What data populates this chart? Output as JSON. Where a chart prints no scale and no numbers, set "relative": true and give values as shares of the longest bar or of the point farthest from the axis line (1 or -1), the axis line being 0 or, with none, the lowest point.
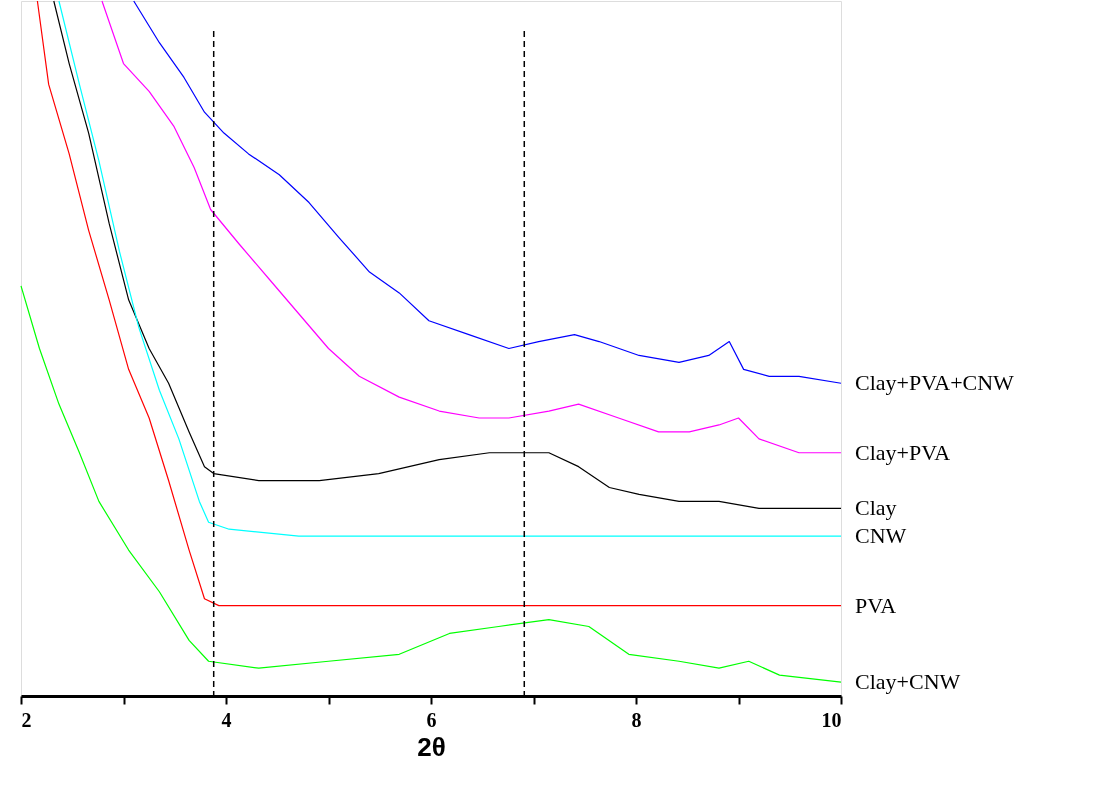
{
  "chart_data": {
    "type": "line",
    "relative": true,
    "xlabel": "2θ",
    "legend": false,
    "grid": false,
    "marker": "none",
    "line_style": "solid",
    "xlim": [
      2,
      10
    ],
    "xticks": [
      2,
      {
        "value": 3,
        "label": null
      },
      4,
      {
        "value": 5,
        "label": null
      },
      6,
      {
        "value": 7,
        "label": null
      },
      8,
      {
        "value": 9,
        "label": null
      },
      10
    ],
    "ref_lines": [
      {
        "axis": "x",
        "value": 3.88,
        "line_style": "dashed",
        "color": "#000000"
      },
      {
        "axis": "x",
        "value": 6.91,
        "line_style": "dashed",
        "color": "#000000"
      }
    ],
    "series": [
      {
        "name": "Clay+PVA+CNW",
        "color": "#0000ff",
        "x": [
          3.1,
          3.35,
          3.59,
          3.79,
          3.98,
          4.22,
          4.52,
          4.81,
          5.1,
          5.4,
          5.69,
          5.98,
          6.37,
          6.76,
          7.05,
          7.4,
          7.64,
          8.03,
          8.42,
          8.71,
          8.91,
          9.05,
          9.3,
          9.59,
          10
        ],
        "values": [
          1,
          0.94,
          0.89,
          0.84,
          0.81,
          0.78,
          0.75,
          0.71,
          0.66,
          0.61,
          0.58,
          0.54,
          0.52,
          0.5,
          0.51,
          0.52,
          0.51,
          0.49,
          0.48,
          0.49,
          0.51,
          0.47,
          0.46,
          0.46,
          0.45
        ]
      },
      {
        "name": "Clay+PVA",
        "color": "#ff00ff",
        "x": [
          2.79,
          3.0,
          3.25,
          3.49,
          3.69,
          3.85,
          4.13,
          4.42,
          4.71,
          5.0,
          5.3,
          5.69,
          6.08,
          6.47,
          6.76,
          7.15,
          7.44,
          7.83,
          8.22,
          8.52,
          8.81,
          9.0,
          9.2,
          9.59,
          10
        ],
        "values": [
          1,
          0.91,
          0.87,
          0.82,
          0.76,
          0.7,
          0.65,
          0.6,
          0.55,
          0.5,
          0.46,
          0.43,
          0.41,
          0.4,
          0.4,
          0.41,
          0.42,
          0.4,
          0.38,
          0.38,
          0.39,
          0.4,
          0.37,
          0.35,
          0.35
        ]
      },
      {
        "name": "Clay",
        "color": "#000000",
        "x": [
          2.32,
          2.47,
          2.66,
          2.86,
          3.05,
          3.25,
          3.44,
          3.64,
          3.79,
          3.88,
          4.32,
          4.91,
          5.49,
          6.08,
          6.57,
          6.86,
          7.15,
          7.44,
          7.74,
          8.03,
          8.42,
          8.81,
          9.2,
          9.59,
          10
        ],
        "values": [
          1,
          0.91,
          0.81,
          0.68,
          0.57,
          0.5,
          0.45,
          0.38,
          0.33,
          0.32,
          0.31,
          0.31,
          0.32,
          0.34,
          0.35,
          0.35,
          0.35,
          0.33,
          0.3,
          0.29,
          0.28,
          0.28,
          0.27,
          0.27,
          0.27
        ]
      },
      {
        "name": "CNW",
        "color": "#00ffff",
        "x": [
          2.37,
          2.57,
          2.76,
          2.96,
          3.15,
          3.35,
          3.54,
          3.74,
          3.83,
          4.03,
          4.71,
          5.69,
          6.66,
          7.64,
          8.61,
          10
        ],
        "values": [
          1,
          0.88,
          0.77,
          0.64,
          0.53,
          0.44,
          0.37,
          0.28,
          0.25,
          0.24,
          0.23,
          0.23,
          0.23,
          0.23,
          0.23,
          0.23
        ]
      },
      {
        "name": "PVA",
        "color": "#ff0000",
        "x": [
          2.16,
          2.27,
          2.47,
          2.66,
          2.86,
          3.05,
          3.25,
          3.44,
          3.64,
          3.79,
          3.93,
          4.71,
          6.66,
          8.61,
          10
        ],
        "values": [
          1,
          0.88,
          0.78,
          0.67,
          0.57,
          0.47,
          0.4,
          0.31,
          0.21,
          0.14,
          0.13,
          0.13,
          0.13,
          0.13,
          0.13
        ]
      },
      {
        "name": "Clay+CNW",
        "color": "#00ff00",
        "x": [
          2.0,
          2.18,
          2.37,
          2.57,
          2.76,
          3.05,
          3.35,
          3.64,
          3.83,
          4.32,
          5.0,
          5.69,
          6.18,
          6.66,
          7.15,
          7.54,
          7.93,
          8.42,
          8.81,
          9.1,
          9.4,
          10
        ],
        "values": [
          0.59,
          0.5,
          0.42,
          0.35,
          0.28,
          0.21,
          0.15,
          0.08,
          0.05,
          0.04,
          0.05,
          0.06,
          0.09,
          0.1,
          0.11,
          0.1,
          0.06,
          0.05,
          0.04,
          0.05,
          0.03,
          0.02
        ]
      }
    ]
  }
}
